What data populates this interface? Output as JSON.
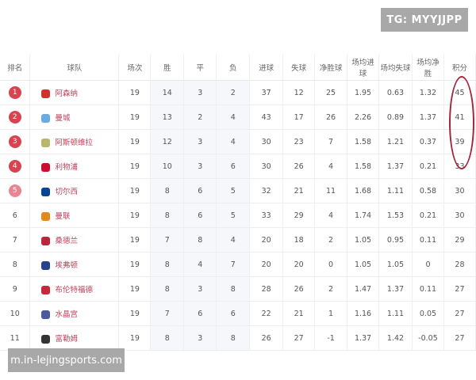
{
  "watermark_top": "TG: MYYJJPP",
  "watermark_bottom": "m.in-lejingsports.com",
  "columns": [
    "排名",
    "球队",
    "场次",
    "胜",
    "平",
    "负",
    "进球",
    "失球",
    "净胜球",
    "场均进球",
    "场均失球",
    "场均净胜",
    "积分"
  ],
  "rows": [
    {
      "rank": "1",
      "team": "阿森纳",
      "logo": "arsenal-crest",
      "color": "#d0312d",
      "p": "19",
      "w": "14",
      "d": "3",
      "l": "2",
      "gf": "37",
      "ga": "12",
      "gd": "25",
      "agf": "1.95",
      "aga": "0.63",
      "agd": "1.32",
      "pts": "45"
    },
    {
      "rank": "2",
      "team": "曼城",
      "logo": "man-city-crest",
      "color": "#6cabdd",
      "p": "19",
      "w": "13",
      "d": "2",
      "l": "4",
      "gf": "43",
      "ga": "17",
      "gd": "26",
      "agf": "2.26",
      "aga": "0.89",
      "agd": "1.37",
      "pts": "41"
    },
    {
      "rank": "3",
      "team": "阿斯顿维拉",
      "logo": "aston-villa-crest",
      "color": "#b8b86a",
      "p": "19",
      "w": "12",
      "d": "3",
      "l": "4",
      "gf": "30",
      "ga": "23",
      "gd": "7",
      "agf": "1.58",
      "aga": "1.21",
      "agd": "0.37",
      "pts": "39"
    },
    {
      "rank": "4",
      "team": "利物浦",
      "logo": "liverpool-crest",
      "color": "#c8102e",
      "p": "19",
      "w": "10",
      "d": "3",
      "l": "6",
      "gf": "30",
      "ga": "26",
      "gd": "4",
      "agf": "1.58",
      "aga": "1.37",
      "agd": "0.21",
      "pts": "33"
    },
    {
      "rank": "5",
      "team": "切尔西",
      "logo": "chelsea-crest",
      "color": "#034694",
      "p": "19",
      "w": "8",
      "d": "6",
      "l": "5",
      "gf": "32",
      "ga": "21",
      "gd": "11",
      "agf": "1.68",
      "aga": "1.11",
      "agd": "0.58",
      "pts": "30"
    },
    {
      "rank": "6",
      "team": "曼联",
      "logo": "man-utd-crest",
      "color": "#e08a1e",
      "p": "19",
      "w": "8",
      "d": "6",
      "l": "5",
      "gf": "33",
      "ga": "29",
      "gd": "4",
      "agf": "1.74",
      "aga": "1.53",
      "agd": "0.21",
      "pts": "30"
    },
    {
      "rank": "7",
      "team": "桑德兰",
      "logo": "sunderland-crest",
      "color": "#b8283a",
      "p": "19",
      "w": "7",
      "d": "8",
      "l": "4",
      "gf": "20",
      "ga": "18",
      "gd": "2",
      "agf": "1.05",
      "aga": "0.95",
      "agd": "0.11",
      "pts": "29"
    },
    {
      "rank": "8",
      "team": "埃弗顿",
      "logo": "everton-crest",
      "color": "#274488",
      "p": "19",
      "w": "8",
      "d": "4",
      "l": "7",
      "gf": "20",
      "ga": "20",
      "gd": "0",
      "agf": "1.05",
      "aga": "1.05",
      "agd": "0",
      "pts": "28"
    },
    {
      "rank": "9",
      "team": "布伦特福德",
      "logo": "brentford-crest",
      "color": "#c8283a",
      "p": "19",
      "w": "8",
      "d": "3",
      "l": "8",
      "gf": "28",
      "ga": "26",
      "gd": "2",
      "agf": "1.47",
      "aga": "1.37",
      "agd": "0.11",
      "pts": "27"
    },
    {
      "rank": "10",
      "team": "水晶宫",
      "logo": "crystal-palace-crest",
      "color": "#4a5a9a",
      "p": "19",
      "w": "7",
      "d": "6",
      "l": "6",
      "gf": "22",
      "ga": "21",
      "gd": "1",
      "agf": "1.16",
      "aga": "1.11",
      "agd": "0.05",
      "pts": "27"
    },
    {
      "rank": "11",
      "team": "富勒姆",
      "logo": "fulham-crest",
      "color": "#333333",
      "p": "19",
      "w": "8",
      "d": "3",
      "l": "8",
      "gf": "26",
      "ga": "27",
      "gd": "-1",
      "agf": "1.37",
      "aga": "1.42",
      "agd": "-0.05",
      "pts": "27"
    }
  ],
  "highlight_color": "#a0283c"
}
